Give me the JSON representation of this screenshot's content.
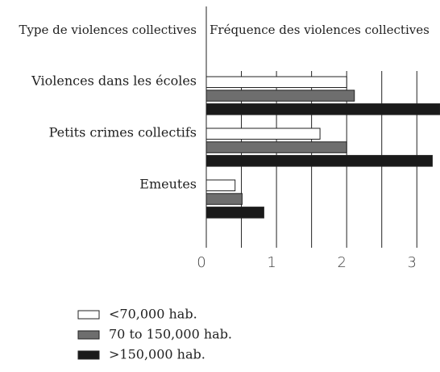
{
  "chart_data": {
    "type": "bar",
    "orientation": "horizontal",
    "category_axis_label": "Type de violences collectives",
    "value_axis_label": "Fréquence des violences collectives",
    "categories": [
      "Violences dans les écoles",
      "Petits crimes collectifs",
      "Emeutes"
    ],
    "series": [
      {
        "name": "<70,000 hab.",
        "color": "#ffffff",
        "values": [
          2.0,
          1.62,
          0.41
        ]
      },
      {
        "name": "70 to 150,000 hab.",
        "color": "#6e6e6e",
        "values": [
          2.11,
          2.0,
          0.51
        ]
      },
      {
        "name": ">150,000 hab.",
        "color": "#1a1a1a",
        "values": [
          3.33,
          3.22,
          0.82
        ]
      }
    ],
    "xlim": [
      0,
      3.33
    ],
    "xticks": [
      0,
      1,
      2,
      3
    ],
    "minor_xticks": [
      0.5,
      1.5,
      2.5
    ],
    "grid": true,
    "legend": "bottom-left"
  }
}
